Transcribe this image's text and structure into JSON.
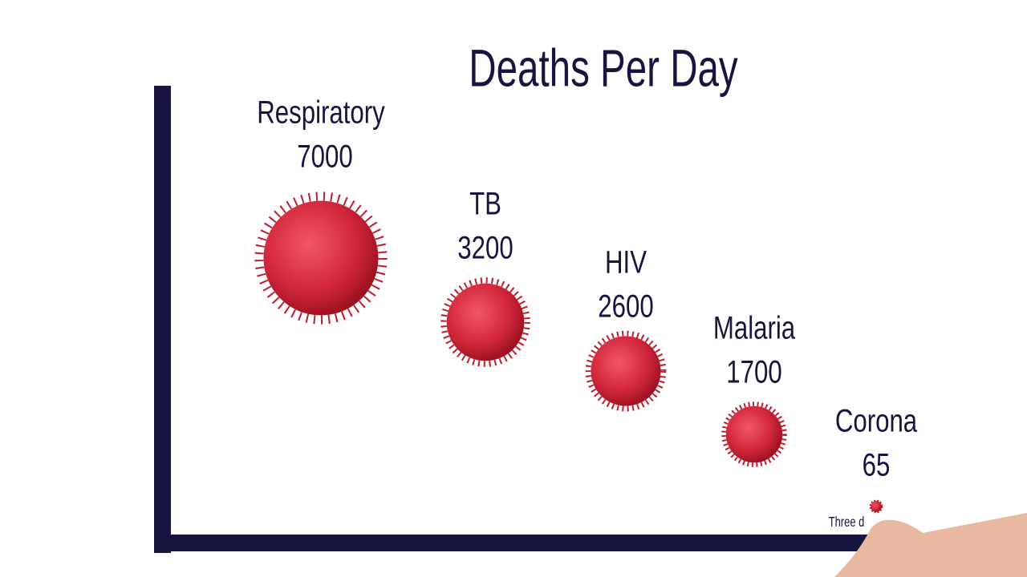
{
  "chart_data": {
    "type": "bubble",
    "title": "Deaths Per Day",
    "categories": [
      "Respiratory",
      "TB",
      "HIV",
      "Malaria",
      "Corona"
    ],
    "values": [
      7000,
      3200,
      2600,
      1700,
      65
    ],
    "color": "#d4283c",
    "annotation": "Three d"
  }
}
